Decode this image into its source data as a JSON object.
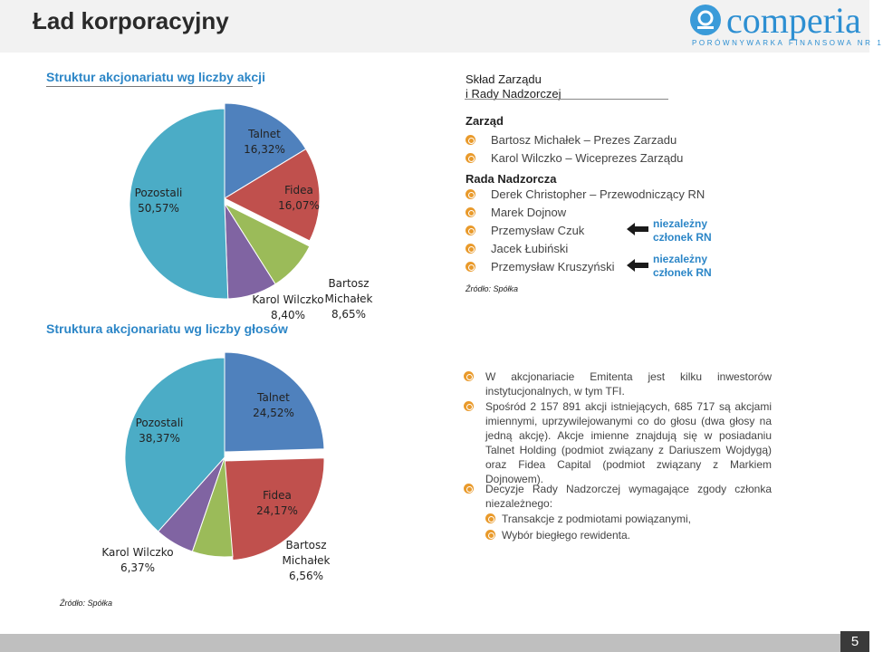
{
  "page": {
    "title": "Ład korporacyjny",
    "number": "5",
    "footer_source": "Źródło: Spółka"
  },
  "logo": {
    "name": "comperia",
    "tagline": "PORÓWNYWARKA FINANSOWA NR 1",
    "icon": "comperia-logo-icon",
    "color": "#2d8fd2"
  },
  "colors": {
    "title_blue": "#2c86c7",
    "talnet": "#4f81bd",
    "fidea": "#c0504d",
    "bartosz": "#9bbb59",
    "wilczko": "#8064a2",
    "pozostali": "#4bacc6",
    "bullet": "#e99a2b"
  },
  "chart_titles": {
    "shares": "Struktur akcjonariatu wg liczby akcji",
    "votes": "Struktura akcjonariatu wg liczby głosów"
  },
  "chart_data": [
    {
      "type": "pie",
      "title": "Struktur akcjonariatu wg liczby akcji",
      "slices": [
        {
          "name": "Talnet",
          "label": "16,32%",
          "value": 16.32,
          "color": "#4f81bd"
        },
        {
          "name": "Fidea",
          "label": "16,07%",
          "value": 16.07,
          "color": "#c0504d"
        },
        {
          "name": "Bartosz Michałek",
          "label": "8,65%",
          "value": 8.65,
          "color": "#9bbb59"
        },
        {
          "name": "Karol Wilczko",
          "label": "8,40%",
          "value": 8.4,
          "color": "#8064a2"
        },
        {
          "name": "Pozostali",
          "label": "50,57%",
          "value": 50.57,
          "color": "#4bacc6"
        }
      ]
    },
    {
      "type": "pie",
      "title": "Struktura akcjonariatu wg liczby głosów",
      "slices": [
        {
          "name": "Talnet",
          "label": "24,52%",
          "value": 24.52,
          "color": "#4f81bd"
        },
        {
          "name": "Fidea",
          "label": "24,17%",
          "value": 24.17,
          "color": "#c0504d"
        },
        {
          "name": "Bartosz Michałek",
          "label": "6,56%",
          "value": 6.56,
          "color": "#9bbb59"
        },
        {
          "name": "Karol Wilczko",
          "label": "6,37%",
          "value": 6.37,
          "color": "#8064a2"
        },
        {
          "name": "Pozostali",
          "label": "38,37%",
          "value": 38.37,
          "color": "#4bacc6"
        }
      ]
    }
  ],
  "pie_labels": {
    "shares": {
      "talnet": [
        "Talnet",
        "16,32%"
      ],
      "fidea": [
        "Fidea",
        "16,07%"
      ],
      "bartosz": [
        "Bartosz",
        "Michałek",
        "8,65%"
      ],
      "wilczko": [
        "Karol Wilczko",
        "8,40%"
      ],
      "pozostali": [
        "Pozostali",
        "50,57%"
      ]
    },
    "votes": {
      "talnet": [
        "Talnet",
        "24,52%"
      ],
      "fidea": [
        "Fidea",
        "24,17%"
      ],
      "bartosz": [
        "Bartosz",
        "Michałek",
        "6,56%"
      ],
      "wilczko": [
        "Karol Wilczko",
        "6,37%"
      ],
      "pozostali": [
        "Pozostali",
        "38,37%"
      ]
    }
  },
  "board": {
    "heading_line1": "Skład Zarządu",
    "heading_line2": "i Rady Nadzorczej",
    "management_title": "Zarząd",
    "management": [
      "Bartosz Michałek – Prezes Zarzadu",
      "Karol Wilczko – Wiceprezes Zarządu"
    ],
    "supervisory_title": "Rada Nadzorcza",
    "supervisory": [
      "Derek Christopher – Przewodniczący RN",
      "Marek Dojnow",
      "Przemysław Czuk",
      "Jacek Łubiński",
      "Przemysław Kruszyński"
    ],
    "independent_line1": "niezależny",
    "independent_line2": "członek RN",
    "source": "Źródło: Spółka"
  },
  "info": {
    "items": [
      "W akcjonariacie Emitenta jest kilku inwestorów instytucjonalnych, w tym TFI.",
      "Spośród 2 157 891 akcji istniejących, 685 717 są akcjami imiennymi, uprzywilejowanymi co do głosu (dwa głosy na jedną akcję). Akcje imienne znajdują się w posiadaniu Talnet Holding (podmiot związany z Dariuszem Wojdygą) oraz Fidea Capital (podmiot związany z Markiem Dojnowem).",
      "Decyzje Rady Nadzorczej wymagające zgody członka niezależnego:"
    ],
    "subitems": [
      "Transakcje z podmiotami powiązanymi,",
      "Wybór biegłego rewidenta."
    ]
  }
}
